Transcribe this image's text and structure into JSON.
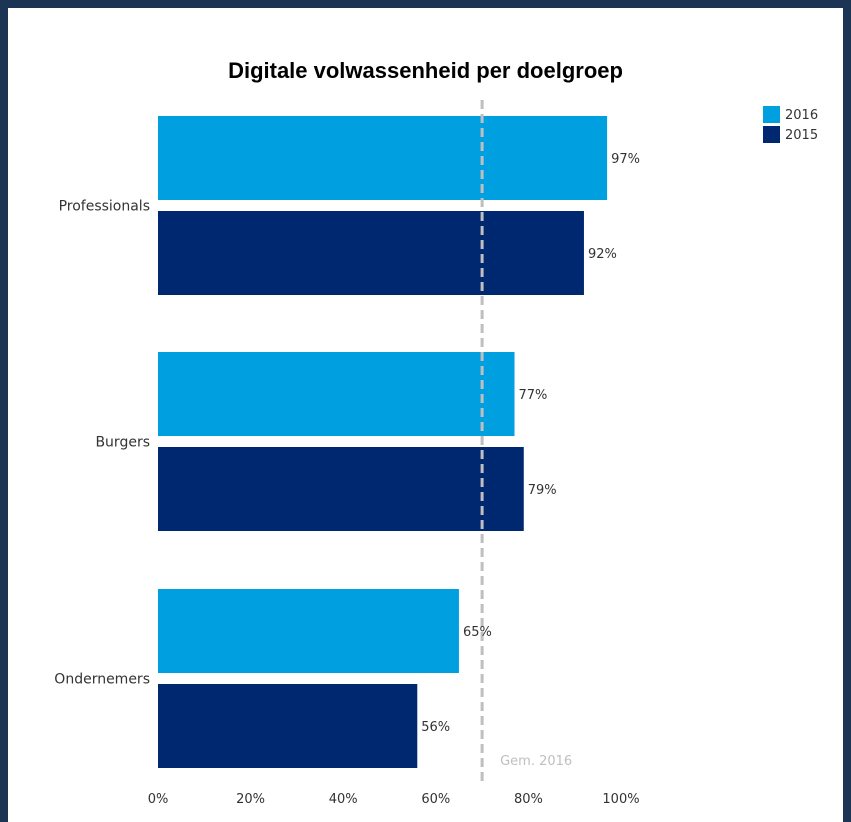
{
  "chart_data": {
    "type": "bar",
    "orientation": "horizontal",
    "title": "Digitale volwassenheid per doelgroep",
    "categories": [
      "Professionals",
      "Burgers",
      "Ondernemers"
    ],
    "series": [
      {
        "name": "2016",
        "values": [
          97,
          77,
          65
        ],
        "color": "#00a0e0",
        "labels": [
          "97%",
          "77%",
          "65%"
        ]
      },
      {
        "name": "2015",
        "values": [
          92,
          79,
          56
        ],
        "color": "#002870",
        "labels": [
          "92%",
          "79%",
          "56%"
        ]
      }
    ],
    "x_ticks": [
      0,
      20,
      40,
      60,
      80,
      100
    ],
    "x_tick_labels": [
      "0%",
      "20%",
      "40%",
      "60%",
      "80%",
      "100%"
    ],
    "xlim": [
      0,
      100
    ],
    "reference_line": {
      "value": 70,
      "label": "Gem. 2016",
      "color": "#bfbfbf"
    },
    "legend_position": "top-right",
    "grid": false
  }
}
